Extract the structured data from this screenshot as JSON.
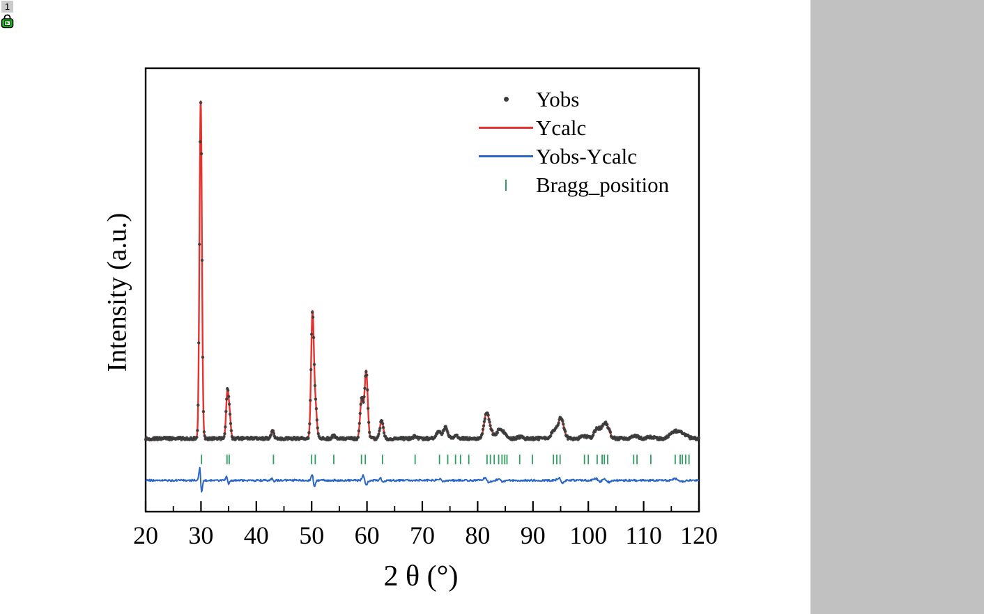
{
  "window": {
    "badge_label": "1",
    "lock_icon": "recalculate-lock-icon"
  },
  "colors": {
    "ycalc_red": "#e3332e",
    "yobs_dark": "#3c3c3c",
    "diff_blue": "#2a66c6",
    "bragg_green": "#2f9e5f",
    "frame_black": "#000000",
    "side_panel_gray": "#c1c1c1"
  },
  "chart_data": {
    "type": "line",
    "title": "",
    "xlabel": "2 θ (°)",
    "ylabel": "Intensity (a.u.)",
    "xlim": [
      20,
      120
    ],
    "ylim_note": "intensity in arbitrary units, no y tick labels shown",
    "grid": "off",
    "legend_position": "top-right-inside",
    "xticks_major": [
      20,
      30,
      40,
      50,
      60,
      70,
      80,
      90,
      100,
      110,
      120
    ],
    "xticks_minor": [
      25,
      35,
      45,
      55,
      65,
      75,
      85,
      95,
      105,
      115
    ],
    "legend": [
      {
        "label": "Yobs",
        "marker": "dot",
        "color": "#3c3c3c"
      },
      {
        "label": "Ycalc",
        "marker": "line",
        "color": "#e3332e"
      },
      {
        "label": "Yobs-Ycalc",
        "marker": "line",
        "color": "#2a66c6"
      },
      {
        "label": "Bragg_position",
        "marker": "tick",
        "color": "#2f9e5f"
      }
    ],
    "pattern_peaks": [
      {
        "t": 29.95,
        "i": 100,
        "w": 0.22
      },
      {
        "t": 34.75,
        "i": 13,
        "w": 0.22
      },
      {
        "t": 35.15,
        "i": 7,
        "w": 0.22
      },
      {
        "t": 42.95,
        "i": 2.5,
        "w": 0.25
      },
      {
        "t": 50.15,
        "i": 37,
        "w": 0.25
      },
      {
        "t": 50.7,
        "i": 9,
        "w": 0.25
      },
      {
        "t": 54.0,
        "i": 0.8,
        "w": 0.3
      },
      {
        "t": 59.05,
        "i": 12,
        "w": 0.28
      },
      {
        "t": 59.85,
        "i": 20,
        "w": 0.28
      },
      {
        "t": 62.65,
        "i": 5.5,
        "w": 0.3
      },
      {
        "t": 68.7,
        "i": 0.7,
        "w": 0.35
      },
      {
        "t": 72.95,
        "i": 2.2,
        "w": 0.4
      },
      {
        "t": 74.2,
        "i": 3.2,
        "w": 0.4
      },
      {
        "t": 76.1,
        "i": 0.8,
        "w": 0.4
      },
      {
        "t": 81.6,
        "i": 7.5,
        "w": 0.42
      },
      {
        "t": 82.4,
        "i": 2.0,
        "w": 0.4
      },
      {
        "t": 83.9,
        "i": 2.6,
        "w": 0.45
      },
      {
        "t": 84.8,
        "i": 1.5,
        "w": 0.45
      },
      {
        "t": 87.6,
        "i": 0.5,
        "w": 0.45
      },
      {
        "t": 93.8,
        "i": 2.2,
        "w": 0.5
      },
      {
        "t": 95.05,
        "i": 6.0,
        "w": 0.5
      },
      {
        "t": 99.3,
        "i": 0.8,
        "w": 0.5
      },
      {
        "t": 101.6,
        "i": 2.8,
        "w": 0.55
      },
      {
        "t": 103.1,
        "i": 4.6,
        "w": 0.6
      },
      {
        "t": 108.4,
        "i": 0.8,
        "w": 0.6
      },
      {
        "t": 111.3,
        "i": 0.5,
        "w": 0.6
      },
      {
        "t": 115.6,
        "i": 2.0,
        "w": 0.8
      },
      {
        "t": 117.1,
        "i": 1.2,
        "w": 0.8
      }
    ],
    "bragg_positions": [
      30.1,
      34.7,
      35.1,
      43.1,
      50.0,
      50.65,
      54.0,
      59.0,
      59.7,
      62.8,
      68.7,
      73.1,
      74.6,
      76.0,
      76.9,
      78.4,
      81.7,
      82.3,
      83.0,
      83.8,
      84.4,
      84.9,
      85.3,
      87.6,
      89.9,
      93.7,
      94.3,
      94.9,
      99.3,
      100.0,
      101.6,
      102.5,
      102.9,
      103.5,
      108.2,
      108.8,
      111.3,
      115.7,
      116.6,
      117.0,
      117.6,
      118.2
    ],
    "diff_spikes": [
      {
        "t": 29.95,
        "w": 0.25,
        "a": 42
      },
      {
        "t": 34.8,
        "w": 0.25,
        "a": 13
      },
      {
        "t": 43.0,
        "w": 0.3,
        "a": 6
      },
      {
        "t": 50.3,
        "w": 0.3,
        "a": 21
      },
      {
        "t": 59.6,
        "w": 0.4,
        "a": 16
      },
      {
        "t": 62.7,
        "w": 0.35,
        "a": 7
      },
      {
        "t": 73.5,
        "w": 0.5,
        "a": 5
      },
      {
        "t": 81.7,
        "w": 0.5,
        "a": 8
      },
      {
        "t": 84.2,
        "w": 0.5,
        "a": 5
      },
      {
        "t": 95.0,
        "w": 0.5,
        "a": 8
      },
      {
        "t": 101.8,
        "w": 0.6,
        "a": 6
      },
      {
        "t": 103.2,
        "w": 0.6,
        "a": 6
      },
      {
        "t": 116.2,
        "w": 0.8,
        "a": 5
      }
    ]
  }
}
